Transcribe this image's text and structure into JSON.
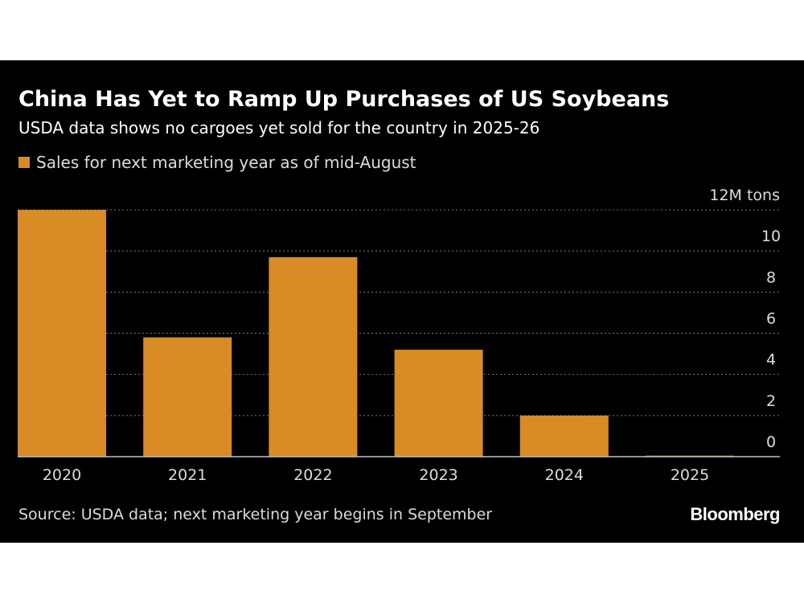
{
  "colors": {
    "background": "#000000",
    "bar": "#d98b26",
    "gridline": "#7a7a7a",
    "axis": "#bfbfbf",
    "text": "#ffffff",
    "muted_text": "#dcdcdc"
  },
  "chart_data": {
    "type": "bar",
    "title": "China Has Yet to Ramp Up Purchases of US Soybeans",
    "subtitle": "USDA data shows no cargoes yet sold for the country in 2025-26",
    "legend": [
      "Sales for next marketing year as of mid-August"
    ],
    "categories": [
      "2020",
      "2021",
      "2022",
      "2023",
      "2024",
      "2025"
    ],
    "series": [
      {
        "name": "Sales for next marketing year as of mid-August",
        "values": [
          12.0,
          5.8,
          9.7,
          5.2,
          2.0,
          0.05
        ]
      }
    ],
    "ylabel": "12M tons",
    "yticks": [
      "0",
      "2",
      "4",
      "6",
      "8",
      "10"
    ],
    "ylim": [
      0,
      12
    ],
    "grid": true,
    "source": "Source: USDA data; next marketing year begins in September"
  },
  "branding": {
    "logo_text": "Bloomberg"
  }
}
